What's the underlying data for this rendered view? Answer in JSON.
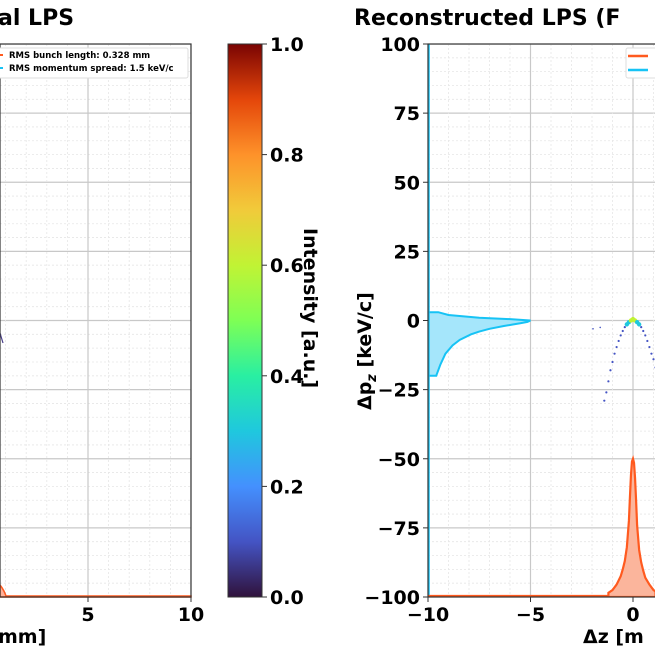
{
  "chart_data": [
    {
      "type": "scatter",
      "title": "al LPS",
      "xlabel": "mm]",
      "xlim": [
        0,
        10
      ],
      "ylim": [
        -100,
        100
      ],
      "x_ticks": [
        "5",
        "10"
      ],
      "grid": true,
      "legend": {
        "placement": "top-left",
        "entries": [
          {
            "label": "RMS bunch length: 0.328 mm",
            "color": "#ff5a1f"
          },
          {
            "label": "RMS momentum spread: 1.5 keV/c",
            "color": "#17c3f5"
          }
        ]
      }
    },
    {
      "type": "colorbar",
      "label": "Intensity [a.u.]",
      "range": [
        0,
        1
      ],
      "ticks": [
        "0.0",
        "0.2",
        "0.4",
        "0.6",
        "0.8",
        "1.0"
      ],
      "colormap": "turbo"
    },
    {
      "type": "scatter",
      "title": "Reconstructed LPS (F",
      "xlabel": "Δz [m",
      "ylabel": "Δp",
      "ylabel_sub": "z",
      "ylabel_unit": " [keV/c]",
      "xlim": [
        -10,
        10
      ],
      "ylim": [
        -100,
        100
      ],
      "x_ticks": [
        "−10",
        "−5",
        "0"
      ],
      "y_ticks": [
        "100",
        "75",
        "50",
        "25",
        "0",
        "−25",
        "−50",
        "−75",
        "−100"
      ],
      "grid": true,
      "legend": {
        "placement": "top-right",
        "entries": [
          {
            "color": "#ff5a1f"
          },
          {
            "color": "#17c3f5"
          }
        ]
      },
      "lps_points": [
        [
          -1.4,
          -29
        ],
        [
          -1.3,
          -26
        ],
        [
          -1.2,
          -22
        ],
        [
          -1.1,
          -18
        ],
        [
          -1.0,
          -15
        ],
        [
          -0.9,
          -12
        ],
        [
          -0.8,
          -9.6
        ],
        [
          -0.7,
          -7.4
        ],
        [
          -0.6,
          -5.4
        ],
        [
          -0.5,
          -3.8
        ],
        [
          -0.4,
          -2.4
        ],
        [
          -0.3,
          -1.4
        ],
        [
          -0.2,
          -0.6
        ],
        [
          -0.1,
          0
        ],
        [
          0,
          0.5
        ],
        [
          0.1,
          0
        ],
        [
          0.2,
          -0.6
        ],
        [
          0.3,
          -1.4
        ],
        [
          0.4,
          -2.4
        ],
        [
          0.5,
          -3.8
        ],
        [
          0.6,
          -5.4
        ],
        [
          0.7,
          -7.4
        ],
        [
          0.8,
          -9.6
        ],
        [
          0.9,
          -12
        ],
        [
          1.0,
          -14
        ],
        [
          1.1,
          -17
        ]
      ],
      "current_profile": {
        "z": [
          -1.2,
          -1.0,
          -0.8,
          -0.6,
          -0.5,
          -0.4,
          -0.3,
          -0.2,
          -0.15,
          -0.1,
          -0.05,
          0,
          0.05,
          0.1,
          0.15,
          0.2,
          0.3,
          0.4,
          0.5,
          0.6,
          0.8,
          1.0,
          1.1
        ],
        "intensity": [
          0.03,
          0.05,
          0.09,
          0.15,
          0.2,
          0.26,
          0.36,
          0.55,
          0.72,
          0.88,
          0.98,
          1.0,
          0.97,
          0.86,
          0.7,
          0.52,
          0.34,
          0.25,
          0.19,
          0.14,
          0.09,
          0.05,
          0.04
        ]
      },
      "momentum_profile": {
        "p": [
          -20,
          -16,
          -12,
          -9,
          -7,
          -5,
          -4,
          -3,
          -2,
          -1.5,
          -1,
          -0.5,
          0,
          0.5,
          1,
          2,
          3
        ],
        "intensity": [
          0.08,
          0.12,
          0.17,
          0.24,
          0.31,
          0.42,
          0.5,
          0.6,
          0.74,
          0.82,
          0.9,
          0.97,
          1.0,
          0.8,
          0.5,
          0.2,
          0.1
        ]
      }
    }
  ]
}
